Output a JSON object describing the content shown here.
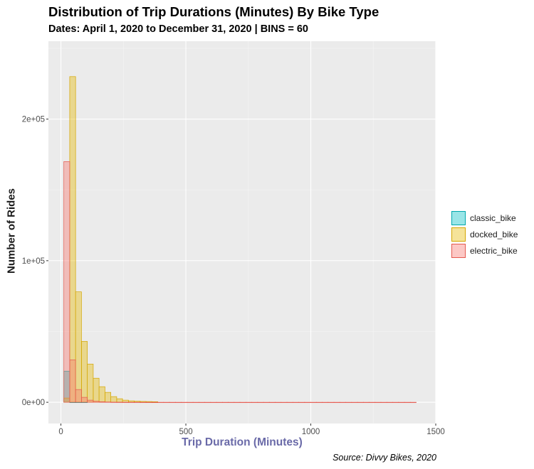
{
  "chart_data": {
    "type": "bar",
    "title": "Distribution of Trip Durations (Minutes) By Bike Type",
    "subtitle": "Dates: April 1, 2020 to December 31, 2020 | BINS = 60",
    "caption": "Source: Divvy Bikes, 2020",
    "xlabel": "Trip Duration (Minutes)",
    "ylabel": "Number of Rides",
    "xlim": [
      -50,
      1500
    ],
    "ylim": [
      -15000,
      255000
    ],
    "x_ticks": [
      0,
      500,
      1000,
      1500
    ],
    "x_tick_labels": [
      "0",
      "500",
      "1000",
      "1500"
    ],
    "y_ticks": [
      0,
      100000,
      200000
    ],
    "y_tick_labels": [
      "0e+00",
      "1e+05",
      "2e+05"
    ],
    "bin_width": 23.5,
    "bin_start": 11.75,
    "grid": true,
    "legend_position": "right",
    "series": [
      {
        "name": "classic_bike",
        "fill": "#00BFC4",
        "stroke": "#00A8AC",
        "values": [
          22000,
          0,
          0,
          0
        ]
      },
      {
        "name": "docked_bike",
        "fill": "#E7B800",
        "stroke": "#D4A600",
        "values": [
          3000,
          230000,
          78000,
          43000,
          27000,
          17000,
          11000,
          7000,
          4000,
          2500,
          1500,
          1000,
          800,
          600,
          500,
          400
        ]
      },
      {
        "name": "electric_bike",
        "fill": "#F8766D",
        "stroke": "#E5594F",
        "values": [
          170000,
          30000,
          9000,
          3500,
          1500,
          700,
          400,
          200,
          100,
          80,
          60,
          50,
          40,
          30,
          30,
          20,
          20,
          15,
          15,
          10,
          10,
          10,
          10,
          10,
          10,
          10,
          10,
          10,
          10,
          10,
          10,
          10,
          10,
          10,
          10,
          10,
          10,
          10,
          10,
          10,
          10,
          10,
          10,
          10,
          10,
          10,
          10,
          10,
          10,
          10,
          10,
          10,
          10,
          10,
          10,
          10,
          10,
          10,
          10,
          10
        ]
      }
    ]
  }
}
